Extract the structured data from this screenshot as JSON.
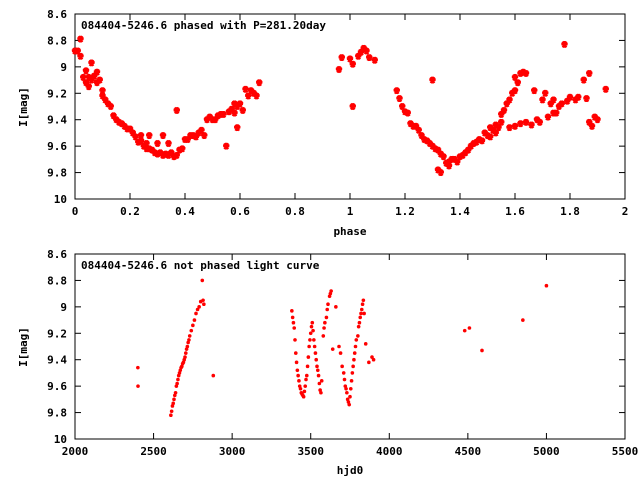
{
  "chart_data": [
    {
      "type": "scatter",
      "title": "084404-5246.6 phased with P=281.20day",
      "xlabel": "phase",
      "ylabel": "I[mag]",
      "xlim": [
        0,
        2
      ],
      "ylim": [
        10,
        8.6
      ],
      "y_inverted": true,
      "xticks": [
        "0",
        "0.2",
        "0.4",
        "0.6",
        "0.8",
        "1",
        "1.2",
        "1.4",
        "1.6",
        "1.8",
        "2"
      ],
      "yticks": [
        "8.6",
        "8.8",
        "9",
        "9.2",
        "9.4",
        "9.6",
        "9.8",
        "10"
      ],
      "marker": "filled-star",
      "color": "#ff0000",
      "points": [
        [
          0.0,
          8.88
        ],
        [
          0.01,
          8.88
        ],
        [
          0.02,
          8.79
        ],
        [
          0.02,
          8.92
        ],
        [
          0.03,
          9.08
        ],
        [
          0.04,
          9.12
        ],
        [
          0.04,
          9.03
        ],
        [
          0.05,
          9.15
        ],
        [
          0.05,
          9.08
        ],
        [
          0.06,
          8.97
        ],
        [
          0.06,
          9.1
        ],
        [
          0.07,
          9.07
        ],
        [
          0.08,
          9.04
        ],
        [
          0.08,
          9.12
        ],
        [
          0.09,
          9.1
        ],
        [
          0.1,
          9.18
        ],
        [
          0.1,
          9.22
        ],
        [
          0.11,
          9.25
        ],
        [
          0.12,
          9.28
        ],
        [
          0.13,
          9.3
        ],
        [
          0.14,
          9.37
        ],
        [
          0.15,
          9.4
        ],
        [
          0.16,
          9.42
        ],
        [
          0.17,
          9.43
        ],
        [
          0.18,
          9.45
        ],
        [
          0.19,
          9.47
        ],
        [
          0.2,
          9.47
        ],
        [
          0.21,
          9.5
        ],
        [
          0.22,
          9.53
        ],
        [
          0.23,
          9.57
        ],
        [
          0.24,
          9.56
        ],
        [
          0.24,
          9.52
        ],
        [
          0.25,
          9.6
        ],
        [
          0.26,
          9.62
        ],
        [
          0.26,
          9.58
        ],
        [
          0.27,
          9.62
        ],
        [
          0.27,
          9.52
        ],
        [
          0.28,
          9.63
        ],
        [
          0.29,
          9.65
        ],
        [
          0.3,
          9.66
        ],
        [
          0.3,
          9.58
        ],
        [
          0.31,
          9.65
        ],
        [
          0.32,
          9.67
        ],
        [
          0.32,
          9.52
        ],
        [
          0.33,
          9.66
        ],
        [
          0.34,
          9.67
        ],
        [
          0.34,
          9.58
        ],
        [
          0.35,
          9.65
        ],
        [
          0.36,
          9.68
        ],
        [
          0.37,
          9.67
        ],
        [
          0.37,
          9.33
        ],
        [
          0.38,
          9.63
        ],
        [
          0.39,
          9.62
        ],
        [
          0.4,
          9.55
        ],
        [
          0.41,
          9.55
        ],
        [
          0.42,
          9.52
        ],
        [
          0.43,
          9.52
        ],
        [
          0.44,
          9.53
        ],
        [
          0.45,
          9.5
        ],
        [
          0.46,
          9.48
        ],
        [
          0.47,
          9.52
        ],
        [
          0.48,
          9.4
        ],
        [
          0.49,
          9.38
        ],
        [
          0.5,
          9.4
        ],
        [
          0.51,
          9.4
        ],
        [
          0.52,
          9.37
        ],
        [
          0.53,
          9.36
        ],
        [
          0.54,
          9.36
        ],
        [
          0.55,
          9.6
        ],
        [
          0.56,
          9.34
        ],
        [
          0.57,
          9.32
        ],
        [
          0.58,
          9.28
        ],
        [
          0.58,
          9.35
        ],
        [
          0.59,
          9.3
        ],
        [
          0.59,
          9.46
        ],
        [
          0.6,
          9.28
        ],
        [
          0.61,
          9.33
        ],
        [
          0.62,
          9.17
        ],
        [
          0.63,
          9.22
        ],
        [
          0.64,
          9.18
        ],
        [
          0.65,
          9.2
        ],
        [
          0.66,
          9.22
        ],
        [
          0.67,
          9.12
        ],
        [
          0.96,
          9.02
        ],
        [
          0.97,
          8.93
        ],
        [
          1.0,
          8.94
        ],
        [
          1.01,
          8.98
        ],
        [
          1.01,
          9.3
        ],
        [
          1.03,
          8.92
        ],
        [
          1.04,
          8.89
        ],
        [
          1.05,
          8.86
        ],
        [
          1.06,
          8.88
        ],
        [
          1.07,
          8.93
        ],
        [
          1.09,
          8.95
        ],
        [
          1.17,
          9.18
        ],
        [
          1.18,
          9.24
        ],
        [
          1.19,
          9.3
        ],
        [
          1.2,
          9.34
        ],
        [
          1.21,
          9.35
        ],
        [
          1.22,
          9.43
        ],
        [
          1.23,
          9.45
        ],
        [
          1.24,
          9.45
        ],
        [
          1.25,
          9.48
        ],
        [
          1.26,
          9.52
        ],
        [
          1.27,
          9.55
        ],
        [
          1.28,
          9.56
        ],
        [
          1.29,
          9.58
        ],
        [
          1.3,
          9.6
        ],
        [
          1.3,
          9.1
        ],
        [
          1.31,
          9.62
        ],
        [
          1.32,
          9.63
        ],
        [
          1.32,
          9.78
        ],
        [
          1.33,
          9.8
        ],
        [
          1.33,
          9.66
        ],
        [
          1.34,
          9.68
        ],
        [
          1.35,
          9.73
        ],
        [
          1.36,
          9.72
        ],
        [
          1.36,
          9.75
        ],
        [
          1.37,
          9.7
        ],
        [
          1.38,
          9.7
        ],
        [
          1.39,
          9.72
        ],
        [
          1.4,
          9.68
        ],
        [
          1.41,
          9.67
        ],
        [
          1.42,
          9.65
        ],
        [
          1.43,
          9.63
        ],
        [
          1.44,
          9.6
        ],
        [
          1.45,
          9.58
        ],
        [
          1.46,
          9.57
        ],
        [
          1.47,
          9.55
        ],
        [
          1.48,
          9.56
        ],
        [
          1.49,
          9.5
        ],
        [
          1.5,
          9.52
        ],
        [
          1.51,
          9.53
        ],
        [
          1.52,
          9.48
        ],
        [
          1.53,
          9.5
        ],
        [
          1.54,
          9.46
        ],
        [
          1.55,
          9.42
        ],
        [
          1.56,
          9.33
        ],
        [
          1.57,
          9.28
        ],
        [
          1.58,
          9.25
        ],
        [
          1.59,
          9.2
        ],
        [
          1.6,
          9.18
        ],
        [
          1.6,
          9.08
        ],
        [
          1.61,
          9.12
        ],
        [
          1.62,
          9.05
        ],
        [
          1.63,
          9.04
        ],
        [
          1.64,
          9.05
        ],
        [
          1.58,
          9.46
        ],
        [
          1.6,
          9.45
        ],
        [
          1.62,
          9.43
        ],
        [
          1.64,
          9.42
        ],
        [
          1.66,
          9.44
        ],
        [
          1.67,
          9.18
        ],
        [
          1.68,
          9.4
        ],
        [
          1.69,
          9.42
        ],
        [
          1.7,
          9.25
        ],
        [
          1.71,
          9.2
        ],
        [
          1.72,
          9.38
        ],
        [
          1.73,
          9.28
        ],
        [
          1.74,
          9.35
        ],
        [
          1.74,
          9.25
        ],
        [
          1.75,
          9.35
        ],
        [
          1.76,
          9.3
        ],
        [
          1.77,
          9.28
        ],
        [
          1.78,
          8.83
        ],
        [
          1.79,
          9.26
        ],
        [
          1.8,
          9.23
        ],
        [
          1.82,
          9.25
        ],
        [
          1.83,
          9.23
        ],
        [
          1.85,
          9.1
        ],
        [
          1.86,
          9.24
        ],
        [
          1.87,
          9.05
        ],
        [
          1.87,
          9.42
        ],
        [
          1.88,
          9.45
        ],
        [
          1.89,
          9.38
        ],
        [
          1.9,
          9.4
        ],
        [
          1.93,
          9.17
        ],
        [
          1.51,
          9.46
        ],
        [
          1.53,
          9.44
        ],
        [
          1.55,
          9.36
        ]
      ]
    },
    {
      "type": "scatter",
      "title": "084404-5246.6 not phased light curve",
      "xlabel": "hjd0",
      "ylabel": "I[mag]",
      "xlim": [
        2000,
        5500
      ],
      "ylim": [
        10,
        8.6
      ],
      "y_inverted": true,
      "xticks": [
        "2000",
        "2500",
        "3000",
        "3500",
        "4000",
        "4500",
        "5000",
        "5500"
      ],
      "yticks": [
        "8.6",
        "8.8",
        "9",
        "9.2",
        "9.4",
        "9.6",
        "9.8",
        "10"
      ],
      "marker": "small-dot",
      "color": "#ff0000",
      "points": [
        [
          2400,
          9.46
        ],
        [
          2401,
          9.6
        ],
        [
          2610,
          9.82
        ],
        [
          2615,
          9.79
        ],
        [
          2620,
          9.75
        ],
        [
          2625,
          9.73
        ],
        [
          2630,
          9.7
        ],
        [
          2635,
          9.67
        ],
        [
          2640,
          9.65
        ],
        [
          2645,
          9.6
        ],
        [
          2650,
          9.58
        ],
        [
          2655,
          9.55
        ],
        [
          2660,
          9.52
        ],
        [
          2665,
          9.5
        ],
        [
          2670,
          9.48
        ],
        [
          2675,
          9.46
        ],
        [
          2680,
          9.45
        ],
        [
          2685,
          9.43
        ],
        [
          2690,
          9.42
        ],
        [
          2695,
          9.4
        ],
        [
          2700,
          9.38
        ],
        [
          2705,
          9.35
        ],
        [
          2710,
          9.32
        ],
        [
          2715,
          9.3
        ],
        [
          2720,
          9.27
        ],
        [
          2725,
          9.25
        ],
        [
          2730,
          9.22
        ],
        [
          2740,
          9.18
        ],
        [
          2750,
          9.14
        ],
        [
          2760,
          9.1
        ],
        [
          2770,
          9.05
        ],
        [
          2780,
          9.02
        ],
        [
          2790,
          9.0
        ],
        [
          2800,
          8.96
        ],
        [
          2810,
          8.8
        ],
        [
          2815,
          8.95
        ],
        [
          2820,
          8.98
        ],
        [
          2880,
          9.52
        ],
        [
          3380,
          9.03
        ],
        [
          3385,
          9.08
        ],
        [
          3390,
          9.12
        ],
        [
          3395,
          9.16
        ],
        [
          3400,
          9.25
        ],
        [
          3405,
          9.35
        ],
        [
          3410,
          9.42
        ],
        [
          3415,
          9.48
        ],
        [
          3420,
          9.52
        ],
        [
          3425,
          9.56
        ],
        [
          3430,
          9.6
        ],
        [
          3435,
          9.62
        ],
        [
          3440,
          9.65
        ],
        [
          3445,
          9.66
        ],
        [
          3450,
          9.67
        ],
        [
          3455,
          9.68
        ],
        [
          3460,
          9.64
        ],
        [
          3465,
          9.6
        ],
        [
          3470,
          9.55
        ],
        [
          3475,
          9.52
        ],
        [
          3480,
          9.45
        ],
        [
          3485,
          9.38
        ],
        [
          3490,
          9.3
        ],
        [
          3495,
          9.25
        ],
        [
          3500,
          9.2
        ],
        [
          3505,
          9.15
        ],
        [
          3510,
          9.12
        ],
        [
          3515,
          9.18
        ],
        [
          3520,
          9.25
        ],
        [
          3525,
          9.3
        ],
        [
          3530,
          9.35
        ],
        [
          3535,
          9.4
        ],
        [
          3540,
          9.45
        ],
        [
          3545,
          9.48
        ],
        [
          3550,
          9.52
        ],
        [
          3555,
          9.58
        ],
        [
          3560,
          9.63
        ],
        [
          3565,
          9.65
        ],
        [
          3570,
          9.56
        ],
        [
          3580,
          9.22
        ],
        [
          3585,
          9.16
        ],
        [
          3590,
          9.12
        ],
        [
          3600,
          9.08
        ],
        [
          3605,
          9.02
        ],
        [
          3610,
          8.98
        ],
        [
          3620,
          8.92
        ],
        [
          3625,
          8.9
        ],
        [
          3630,
          8.88
        ],
        [
          3640,
          9.32
        ],
        [
          3660,
          9.0
        ],
        [
          3680,
          9.3
        ],
        [
          3690,
          9.35
        ],
        [
          3700,
          9.45
        ],
        [
          3710,
          9.5
        ],
        [
          3715,
          9.55
        ],
        [
          3720,
          9.6
        ],
        [
          3725,
          9.62
        ],
        [
          3730,
          9.65
        ],
        [
          3735,
          9.7
        ],
        [
          3740,
          9.72
        ],
        [
          3745,
          9.74
        ],
        [
          3750,
          9.68
        ],
        [
          3755,
          9.62
        ],
        [
          3760,
          9.56
        ],
        [
          3765,
          9.5
        ],
        [
          3770,
          9.45
        ],
        [
          3775,
          9.4
        ],
        [
          3780,
          9.35
        ],
        [
          3785,
          9.3
        ],
        [
          3790,
          9.25
        ],
        [
          3800,
          9.22
        ],
        [
          3805,
          9.15
        ],
        [
          3810,
          9.12
        ],
        [
          3815,
          9.08
        ],
        [
          3820,
          9.05
        ],
        [
          3825,
          9.02
        ],
        [
          3830,
          8.98
        ],
        [
          3835,
          8.95
        ],
        [
          3840,
          9.05
        ],
        [
          3850,
          9.28
        ],
        [
          3870,
          9.42
        ],
        [
          3890,
          9.38
        ],
        [
          3900,
          9.4
        ],
        [
          4480,
          9.18
        ],
        [
          4510,
          9.16
        ],
        [
          4590,
          9.33
        ],
        [
          4850,
          9.1
        ],
        [
          5000,
          8.84
        ]
      ]
    }
  ]
}
